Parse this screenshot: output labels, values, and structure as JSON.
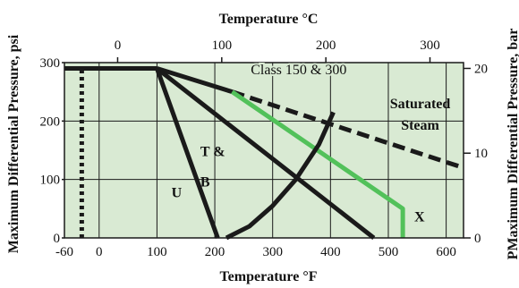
{
  "chart_data": {
    "type": "line",
    "title": "",
    "xlabel": "Temperature °F",
    "x2label": "Temperature °C",
    "ylabel": "Maximum Differential Pressure, psi",
    "y2label": "PMaximum Differential Pressure, bar",
    "xlim": [
      -60,
      630
    ],
    "ylim": [
      0,
      300
    ],
    "grid": true,
    "background_color": "#d9ead3",
    "x_ticks": [
      -60,
      0,
      100,
      200,
      300,
      400,
      500,
      600
    ],
    "y_ticks": [
      0,
      100,
      200,
      300
    ],
    "x2_ticks": [
      0,
      100,
      200,
      300
    ],
    "y2_ticks": [
      0,
      10,
      20
    ],
    "series": [
      {
        "label": "",
        "style": "dotted",
        "color": "#1a1a1a",
        "points": [
          [
            -30,
            0
          ],
          [
            -30,
            290
          ]
        ]
      },
      {
        "label": "",
        "style": "solid",
        "color": "#1a1a1a",
        "points": [
          [
            -60,
            290
          ],
          [
            100,
            290
          ]
        ]
      },
      {
        "label": "U",
        "style": "solid",
        "color": "#1a1a1a",
        "points": [
          [
            100,
            290
          ],
          [
            205,
            0
          ]
        ]
      },
      {
        "label": "T & B",
        "style": "solid",
        "color": "#1a1a1a",
        "points": [
          [
            100,
            290
          ],
          [
            475,
            0
          ]
        ]
      },
      {
        "label": "",
        "style": "solid",
        "color": "#1a1a1a",
        "points": [
          [
            100,
            290
          ],
          [
            230,
            250
          ]
        ]
      },
      {
        "label": "Saturated Steam",
        "style": "dashed",
        "color": "#1a1a1a",
        "points": [
          [
            230,
            250
          ],
          [
            630,
            120
          ]
        ]
      },
      {
        "label": "Class 150 & 300",
        "style": "solid",
        "color": "#52c15a",
        "points": [
          [
            230,
            250
          ],
          [
            525,
            50
          ],
          [
            525,
            0
          ]
        ]
      },
      {
        "label": "X",
        "style": "solid",
        "color": "#1a1a1a",
        "points": [
          [
            220,
            0
          ],
          [
            260,
            20
          ],
          [
            300,
            55
          ],
          [
            340,
            100
          ],
          [
            380,
            160
          ],
          [
            405,
            215
          ]
        ]
      }
    ],
    "annotations": [
      {
        "text": "Class 150 & 300",
        "x": 345,
        "y": 280
      },
      {
        "text": "Saturated",
        "x": 555,
        "y": 222
      },
      {
        "text": "Steam",
        "x": 555,
        "y": 185
      },
      {
        "text": "T &",
        "x": 175,
        "y": 140
      },
      {
        "text": "B",
        "x": 175,
        "y": 88
      },
      {
        "text": "U",
        "x": 125,
        "y": 70
      },
      {
        "text": "X",
        "x": 545,
        "y": 28
      }
    ]
  }
}
